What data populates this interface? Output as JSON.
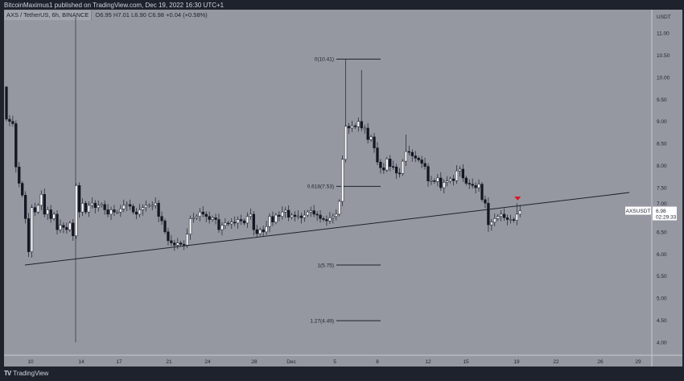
{
  "header": {
    "published": "BitcoinMaximus1 published on TradingView.com, Dec 19, 2022 16:30 UTC+1"
  },
  "legend": {
    "symbol": "AXS / TetherUS, 6h, BINANCE",
    "o_label": "O",
    "o": "6.95",
    "h_label": "H",
    "h": "7.01",
    "l_label": "L",
    "l": "6.90",
    "c_label": "C",
    "c": "6.98",
    "change": "+0.04 (+0.58%)"
  },
  "footer": {
    "logo": "TV",
    "brand": "TradingView"
  },
  "colors": {
    "background": "#9598a1",
    "up": "#ffffff",
    "down": "#131722",
    "marker": "#e0141e",
    "frame": "#1e222d"
  },
  "chart_data": {
    "type": "candlestick",
    "interval": "6h",
    "currency": "USDT",
    "ylim": [
      3.8,
      11.3
    ],
    "y_ticks": [
      "11.00",
      "10.50",
      "10.00",
      "9.50",
      "9.00",
      "8.50",
      "8.00",
      "7.50",
      "7.00",
      "6.50",
      "6.00",
      "5.50",
      "5.00",
      "4.50",
      "4.00"
    ],
    "x_ticks": [
      "10",
      "14",
      "17",
      "21",
      "24",
      "28",
      "Dec",
      "5",
      "8",
      "12",
      "15",
      "19",
      "22",
      "26",
      "29"
    ],
    "close": [
      9.05,
      9.0,
      8.95,
      7.97,
      7.6,
      7.33,
      6.8,
      6.05,
      7.05,
      6.95,
      7.1,
      7.35,
      6.9,
      7.0,
      6.8,
      6.9,
      6.55,
      6.65,
      6.6,
      6.55,
      6.7,
      6.41,
      7.55,
      6.95,
      7.15,
      6.95,
      7.1,
      7.15,
      7.05,
      7.1,
      7.12,
      7.0,
      6.9,
      7.0,
      6.95,
      6.95,
      7.02,
      7.1,
      7.12,
      7.08,
      6.95,
      6.9,
      7.0,
      7.05,
      7.1,
      7.1,
      7.1,
      7.15,
      6.85,
      6.75,
      6.5,
      6.3,
      6.25,
      6.2,
      6.25,
      6.22,
      6.2,
      6.45,
      6.8,
      6.82,
      6.85,
      6.95,
      6.9,
      6.85,
      6.78,
      6.82,
      6.78,
      6.55,
      6.65,
      6.7,
      6.68,
      6.72,
      6.7,
      6.78,
      6.75,
      6.7,
      6.85,
      6.9,
      6.55,
      6.46,
      6.55,
      6.5,
      6.62,
      6.85,
      6.72,
      6.88,
      6.85,
      6.95,
      6.99,
      6.83,
      6.88,
      6.85,
      6.86,
      6.82,
      6.88,
      6.95,
      6.98,
      6.9,
      6.88,
      6.8,
      6.78,
      6.75,
      6.82,
      6.85,
      6.9,
      7.19,
      8.14,
      8.89,
      8.85,
      8.9,
      8.88,
      9.0,
      8.85,
      8.85,
      8.59,
      8.65,
      8.4,
      8.08,
      7.95,
      7.9,
      8.15,
      7.98,
      7.97,
      7.83,
      7.82,
      8.1,
      8.32,
      8.3,
      8.22,
      8.17,
      8.13,
      8.05,
      7.98,
      7.65,
      7.66,
      7.64,
      7.72,
      7.5,
      7.62,
      7.65,
      7.7,
      7.66,
      7.88,
      7.92,
      7.72,
      7.6,
      7.58,
      7.55,
      7.5,
      7.58,
      7.23,
      7.15,
      6.66,
      6.72,
      6.8,
      6.85,
      6.9,
      6.82,
      6.78,
      6.78,
      6.76,
      6.9,
      6.98
    ],
    "first_open": 9.78,
    "notable_wicks": {
      "0": {
        "high": 9.8
      },
      "7": {
        "low": 5.93
      },
      "22": {
        "high": 7.6
      },
      "107": {
        "high": 10.41
      },
      "112": {
        "high": 10.16
      },
      "126": {
        "high": 8.7
      },
      "152": {
        "low": 6.5
      },
      "161": {
        "high": 7.15
      }
    },
    "trendline": {
      "from": 5.75,
      "to": 7.39
    },
    "fib_levels": [
      {
        "label": "0(10.41)",
        "value": 10.41
      },
      {
        "label": "0.618(7.53)",
        "value": 7.53
      },
      {
        "label": "1(5.75)",
        "value": 5.75
      },
      {
        "label": "1.27(4.49)",
        "value": 4.49
      }
    ],
    "last_price": {
      "symbol": "AXSUSDT",
      "price": "6.98",
      "countdown": "02:29:33"
    },
    "grid": false,
    "legend": "top-left"
  }
}
